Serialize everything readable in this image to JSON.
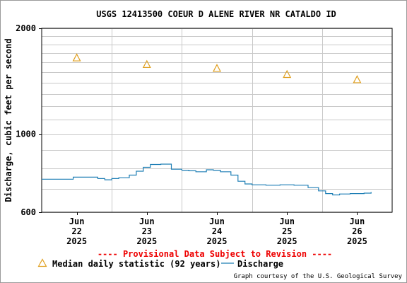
{
  "chart_data": {
    "type": "line",
    "title": "USGS 12413500 COEUR D ALENE RIVER NR CATALDO ID",
    "ylabel": "Discharge, cubic feet per second",
    "xlabel": "",
    "y_scale": "log",
    "ylim": [
      600,
      2000
    ],
    "y_tick_labels": [
      "2000",
      "1000",
      "600"
    ],
    "y_tick_values": [
      2000,
      1000,
      600
    ],
    "y_minor_gridlines": [
      700,
      800,
      900,
      1100,
      1200,
      1300,
      1400,
      1500,
      1600,
      1700,
      1800,
      1900
    ],
    "x_range_days": [
      0,
      5
    ],
    "x_ticks": [
      {
        "day": 0.5,
        "lines": [
          "Jun",
          "22",
          "2025"
        ]
      },
      {
        "day": 1.5,
        "lines": [
          "Jun",
          "23",
          "2025"
        ]
      },
      {
        "day": 2.5,
        "lines": [
          "Jun",
          "24",
          "2025"
        ]
      },
      {
        "day": 3.5,
        "lines": [
          "Jun",
          "25",
          "2025"
        ]
      },
      {
        "day": 4.5,
        "lines": [
          "Jun",
          "26",
          "2025"
        ]
      }
    ],
    "x_day_gridlines": [
      1,
      2,
      3,
      4
    ],
    "grid": true,
    "provisional_note": "---- Provisional Data Subject to Revision ----",
    "series": [
      {
        "name": "Median daily statistic (92 years)",
        "marker": "triangle",
        "color": "#e0a020",
        "x": [
          0.5,
          1.5,
          2.5,
          3.5,
          4.5
        ],
        "y": [
          1650,
          1580,
          1540,
          1480,
          1430
        ]
      },
      {
        "name": "Discharge",
        "marker": "line",
        "color": "#1f7fb5",
        "x": [
          0.0,
          0.25,
          0.45,
          0.6,
          0.7,
          0.8,
          0.9,
          1.0,
          1.1,
          1.25,
          1.35,
          1.45,
          1.55,
          1.7,
          1.85,
          2.0,
          2.1,
          2.2,
          2.35,
          2.45,
          2.55,
          2.7,
          2.8,
          2.9,
          3.0,
          3.2,
          3.4,
          3.6,
          3.8,
          3.95,
          4.05,
          4.15,
          4.25,
          4.4,
          4.6,
          4.7
        ],
        "y": [
          745,
          745,
          755,
          755,
          755,
          748,
          742,
          748,
          752,
          765,
          785,
          805,
          820,
          822,
          795,
          790,
          787,
          782,
          792,
          790,
          782,
          765,
          735,
          722,
          718,
          716,
          718,
          716,
          705,
          690,
          678,
          672,
          676,
          678,
          680,
          685
        ]
      }
    ],
    "legend": {
      "placement": "bottom-left",
      "entries": [
        "Median daily statistic (92 years)",
        "Discharge"
      ]
    },
    "credit": "Graph courtesy of the U.S. Geological Survey",
    "colors": {
      "provisional": "#ee0000",
      "grid": "#c8c8c8",
      "plot_border": "#000000"
    }
  }
}
